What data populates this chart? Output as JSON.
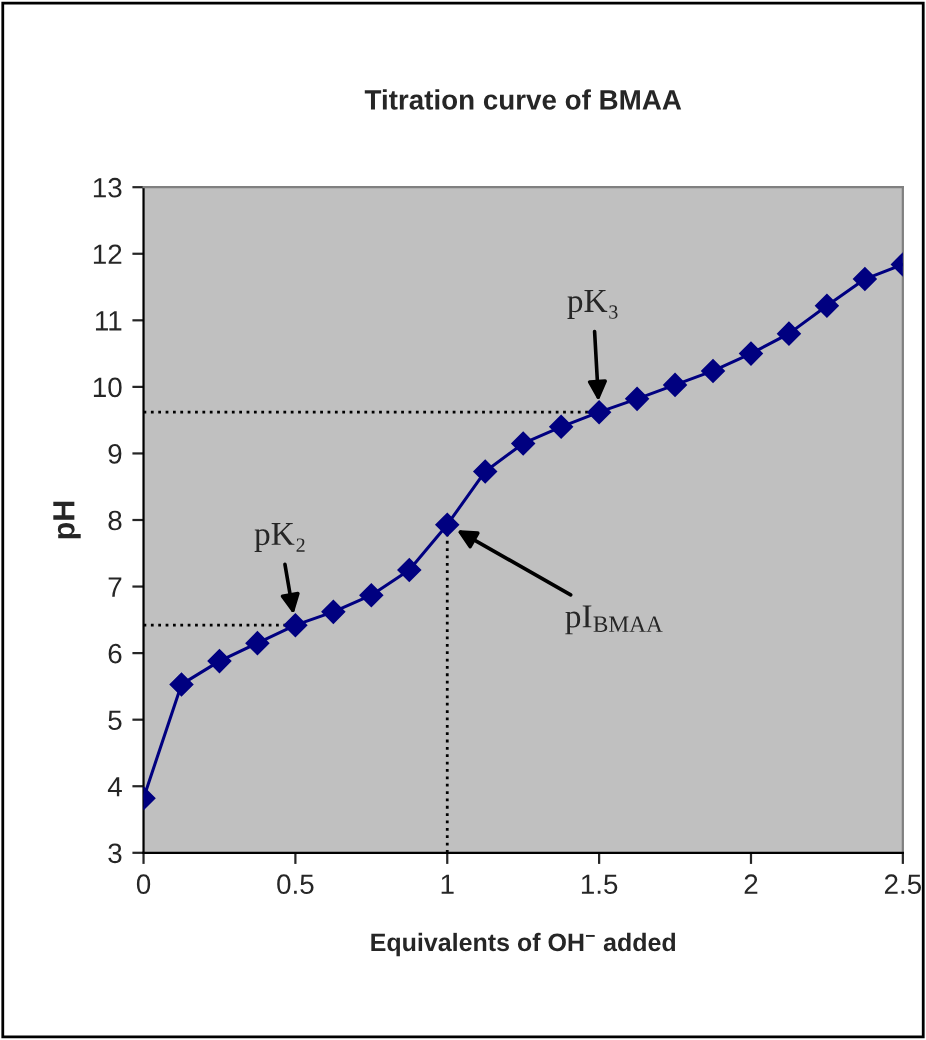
{
  "chart_data": {
    "type": "line",
    "title": "Titration curve of BMAA",
    "xlabel": "Equivalents of OH$^{−}$ added",
    "ylabel": "pH",
    "x": [
      0,
      0.125,
      0.25,
      0.375,
      0.5,
      0.625,
      0.75,
      0.875,
      1.0,
      1.125,
      1.25,
      1.375,
      1.5,
      1.625,
      1.75,
      1.875,
      2.0,
      2.125,
      2.25,
      2.375,
      2.5
    ],
    "series": [
      {
        "color": "#000080",
        "values": [
          3.82,
          5.53,
          5.88,
          6.15,
          6.42,
          6.62,
          6.87,
          7.25,
          7.93,
          8.73,
          9.15,
          9.4,
          9.62,
          9.82,
          10.03,
          10.24,
          10.5,
          10.8,
          11.22,
          11.62,
          11.84
        ]
      }
    ],
    "xlim": [
      0,
      2.5
    ],
    "xticks": [
      0,
      0.5,
      1,
      1.5,
      2,
      2.5
    ],
    "ylim": [
      3,
      13
    ],
    "yticks": [
      3,
      4,
      5,
      6,
      7,
      8,
      9,
      10,
      11,
      12,
      13
    ],
    "marker": "diamond",
    "line_style": "solid",
    "grid": false,
    "ref_lines": [
      {
        "axis": "y",
        "value": 6.42,
        "color": "#000000",
        "line_style": "dotted"
      },
      {
        "axis": "y",
        "value": 9.62,
        "color": "#000000",
        "line_style": "dotted"
      },
      {
        "axis": "x",
        "value": 1,
        "color": "#000000",
        "line_style": "dotted"
      }
    ],
    "annotations": [
      {
        "text": "pK₂",
        "x": 0.5,
        "y": 6.42
      },
      {
        "text": "pK₃",
        "x": 1.5,
        "y": 9.62
      },
      {
        "text": "pI$_{BMAA}$",
        "x": 1,
        "y": 7.93
      }
    ]
  }
}
